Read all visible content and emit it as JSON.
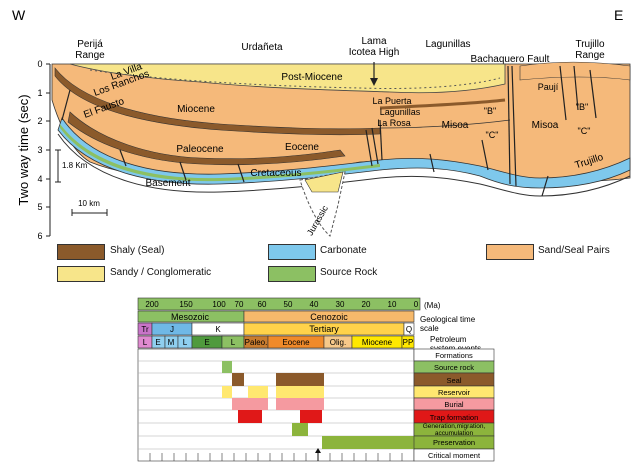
{
  "section": {
    "compass": {
      "west": "W",
      "east": "E"
    },
    "localities": {
      "perija": [
        "Perijá",
        "Range"
      ],
      "urdaneta": "Urdañeta",
      "lama": [
        "Lama",
        "Icotea High"
      ],
      "lagunillas": "Lagunillas",
      "bachaquero": "Bachaquero Fault",
      "trujillo_range": [
        "Trujillo",
        "Range"
      ]
    },
    "y_axis": {
      "label": "Two way time (sec)",
      "ticks": [
        "0",
        "1",
        "2",
        "3",
        "4",
        "5",
        "6"
      ]
    },
    "units": {
      "post_miocene": "Post-Miocene",
      "la_villa": "La Villa",
      "los_ranchos": "Los Ranchos",
      "el_fausto": "El Fausto",
      "miocene": "Miocene",
      "la_puerta": "La Puerta",
      "lagunillas_fm": "Lagunillas",
      "la_rosa": "La Rosa",
      "misoa_left": "Misoa",
      "misoa_right": "Misoa",
      "pauji": "Paují",
      "b_left": "\"B\"",
      "c_left": "\"C\"",
      "b_right": "\"B\"",
      "c_right": "\"C\"",
      "paleocene": "Paleocene",
      "eocene": "Eocene",
      "cretaceous": "Cretaceous",
      "basement": "Basement",
      "jurassic": "Jurassic",
      "trujillo": "Trujillo"
    },
    "scales": {
      "vertical": "1.8 Km",
      "horizontal": "10 km"
    }
  },
  "legend": [
    {
      "label": "Shaly (Seal)",
      "color": "#8b5a2b"
    },
    {
      "label": "Carbonate",
      "color": "#7ec8ec"
    },
    {
      "label": "Sand/Seal Pairs",
      "color": "#f5b97a"
    },
    {
      "label": "Sandy / Conglomeratic",
      "color": "#f7e58a"
    },
    {
      "label": "Source Rock",
      "color": "#8cc063"
    }
  ],
  "events_chart": {
    "age_ticks": [
      "200",
      "150",
      "100",
      "50",
      "0"
    ],
    "age_minor_ticks": [
      "70",
      "60",
      "40",
      "30",
      "20",
      "10"
    ],
    "age_unit": "(Ma)",
    "eras": [
      {
        "label": "Mesozoic",
        "color": "#8cc063"
      },
      {
        "label": "Cenozoic",
        "color": "#f6b96b"
      }
    ],
    "periods": [
      {
        "label": "Tr",
        "color": "#c874c8"
      },
      {
        "label": "J",
        "color": "#6fb8e6"
      },
      {
        "label": "K",
        "color": "#ffffff"
      },
      {
        "label": "Tertiary",
        "color": "#ffd24a"
      },
      {
        "label": "Q",
        "color": "#ffffff"
      }
    ],
    "epochs": [
      {
        "label": "L",
        "color": "#e08ad0"
      },
      {
        "label": "E",
        "color": "#8fcfef"
      },
      {
        "label": "M",
        "color": "#8fcfef"
      },
      {
        "label": "L",
        "color": "#8fcfef"
      },
      {
        "label": "E",
        "color": "#4f9a3d"
      },
      {
        "label": "L",
        "color": "#8cc063"
      },
      {
        "label": "Paleo.",
        "color": "#c97c2e"
      },
      {
        "label": "Eocene",
        "color": "#f08a2a"
      },
      {
        "label": "Olig.",
        "color": "#f7c98a"
      },
      {
        "label": "Miocene",
        "color": "#ffe800"
      },
      {
        "label": "PP",
        "color": "#ffe800"
      }
    ],
    "header_labels": {
      "geological_time_scale": "Geological time scale",
      "petroleum_events": "Petroleum system events"
    },
    "events": [
      {
        "label": "Formations",
        "color": "#ffffff"
      },
      {
        "label": "Source rock",
        "color": "#8cc063"
      },
      {
        "label": "Seal",
        "color": "#8b5a2b"
      },
      {
        "label": "Reservoir",
        "color": "#ffe870"
      },
      {
        "label": "Burial",
        "color": "#f59aa0"
      },
      {
        "label": "Trap formation",
        "color": "#e01818"
      },
      {
        "label": "Generation,migration, accumulation",
        "color": "#8cb43c"
      },
      {
        "label": "Preservation",
        "color": "#8cb43c"
      },
      {
        "label": "Critical moment",
        "color": "#ffffff"
      }
    ]
  }
}
